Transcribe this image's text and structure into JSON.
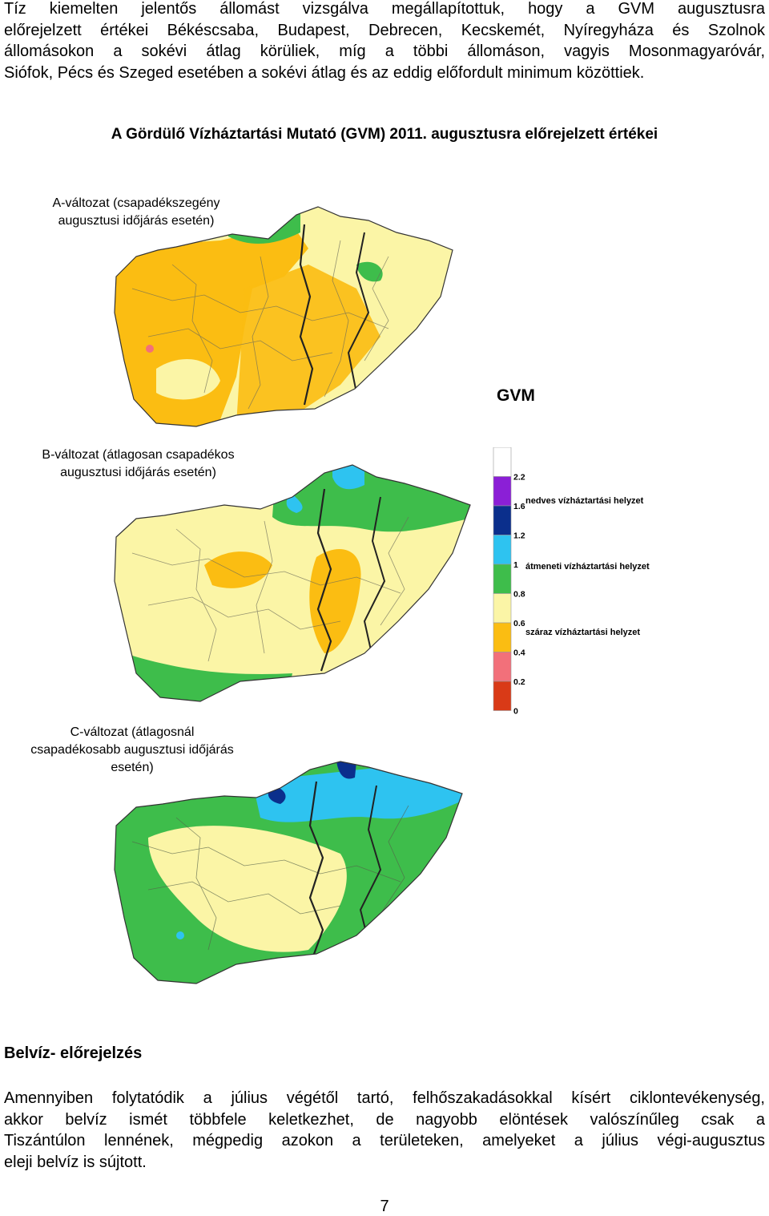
{
  "intro_lines": [
    "Tíz kiemelten jelentős állomást vizsgálva megállapítottuk, hogy a GVM augusztusra",
    "előrejelzett értékei Békéscsaba, Budapest, Debrecen, Kecskemét, Nyíregyháza és Szolnok",
    "állomásokon a sokévi átlag körüliek, míg a többi állomáson, vagyis Mosonmagyaróvár,",
    "Siófok, Pécs és Szeged esetében a sokévi átlag és az eddig előfordult minimum közöttiek."
  ],
  "figure_title": "A Gördülő Vízháztartási Mutató (GVM) 2011. augusztusra előrejelzett értékei",
  "maps": {
    "a_label": [
      "A-változat (csapadékszegény",
      "augusztusi időjárás esetén)"
    ],
    "b_label": [
      "B-változat (átlagosan csapadékos",
      "augusztusi időjárás esetén)"
    ],
    "c_label": [
      "C-változat (átlagosnál",
      "csapadékosabb augusztusi időjárás",
      "esetén)"
    ]
  },
  "legend": {
    "title": "GVM",
    "ticks": [
      "2.2",
      "1.6",
      "1.2",
      "1",
      "0.8",
      "0.6",
      "0.4",
      "0.2",
      "0"
    ],
    "classes": [
      "nedves vízháztartási helyzet",
      "átmeneti vízháztartási helyzet",
      "száraz vízháztartási helyzet"
    ],
    "colors": [
      "#ffffff",
      "#8b1fd6",
      "#0b2f8c",
      "#2ec3f0",
      "#3ebd4b",
      "#fbf5a6",
      "#fbbd12",
      "#f2707a",
      "#d93a17"
    ]
  },
  "section_heading": "Belvíz- előrejelzés",
  "body_lines": [
    "Amennyiben folytatódik a július végétől tartó, felhőszakadásokkal kísért ciklontevékenység,",
    "akkor belvíz ismét többfele keletkezhet, de nagyobb elöntések valószínűleg csak a",
    "Tiszántúlon lennének, mégpedig azokon a területeken, amelyeket a július végi-augusztus",
    "eleji belvíz is sújtott."
  ],
  "page_number": "7"
}
